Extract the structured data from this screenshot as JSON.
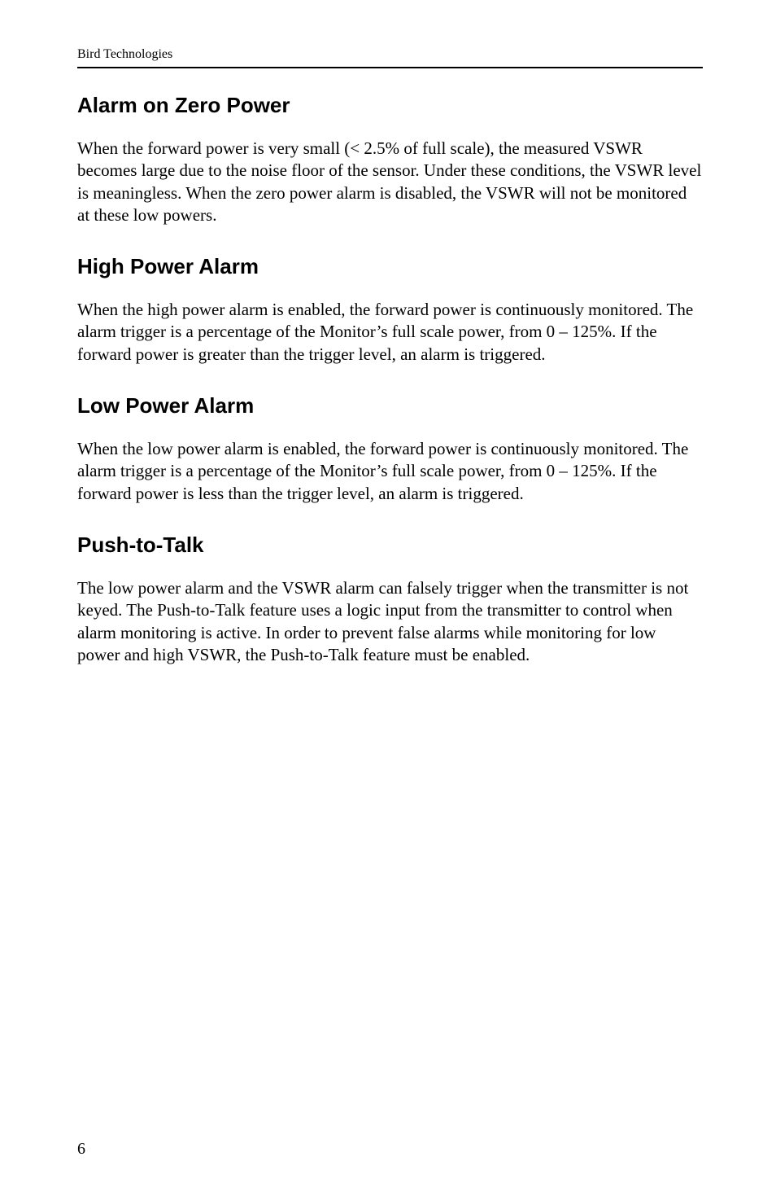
{
  "runningHead": "Bird Technologies",
  "sections": [
    {
      "heading": "Alarm on Zero Power",
      "body": "When the forward power is very small (< 2.5% of full scale), the measured VSWR becomes large due to the noise floor of the sensor. Under these conditions, the VSWR level is meaningless. When the zero power alarm is disabled, the VSWR will not be monitored at these low powers."
    },
    {
      "heading": "High Power Alarm",
      "body": "When the high power alarm is enabled, the forward power is continuously monitored. The alarm trigger is a percentage of the Monitor’s full scale power, from 0 – 125%. If the forward power is greater than the trigger level, an alarm is triggered."
    },
    {
      "heading": "Low Power Alarm",
      "body": "When the low power alarm is enabled, the forward power is continuously monitored. The alarm trigger is a percentage of the Monitor’s full scale power, from 0 – 125%. If the forward power is less than the trigger level, an alarm is triggered."
    },
    {
      "heading": "Push-to-Talk",
      "body": "The low power alarm and the VSWR alarm can falsely trigger when the transmitter is not keyed. The Push-to-Talk feature uses a logic input from the transmitter to control when alarm monitoring is active. In order to prevent false alarms while monitoring for low power and high VSWR, the Push-to-Talk feature must be enabled."
    }
  ],
  "pageNumber": "6"
}
